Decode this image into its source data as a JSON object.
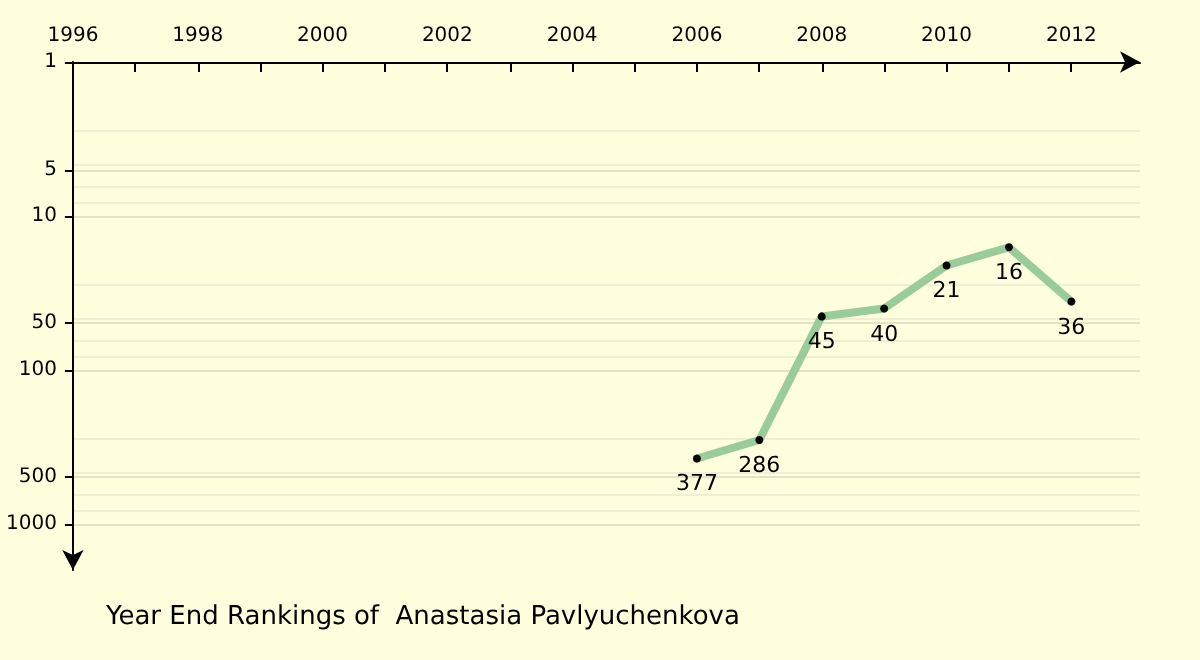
{
  "chart_data": {
    "type": "line",
    "title": "Year End Rankings of  Anastasia Pavlyuchenkova",
    "x": [
      2006,
      2007,
      2008,
      2009,
      2010,
      2011,
      2012
    ],
    "series": [
      {
        "color": "#99cc99",
        "values": [
          377,
          286,
          45,
          40,
          21,
          16,
          36
        ]
      }
    ],
    "xlim": [
      1996,
      2013.1
    ],
    "xticks": [
      1996,
      {
        "value": 1997,
        "label": null
      },
      1998,
      {
        "value": 1999,
        "label": null
      },
      2000,
      {
        "value": 2001,
        "label": null
      },
      2002,
      {
        "value": 2003,
        "label": null
      },
      2004,
      {
        "value": 2005,
        "label": null
      },
      2006,
      {
        "value": 2007,
        "label": null
      },
      2008,
      {
        "value": 2009,
        "label": null
      },
      2010,
      {
        "value": 2011,
        "label": null
      },
      2012
    ],
    "ylim": [
      2000,
      1
    ],
    "yticks": [
      1,
      5,
      10,
      50,
      100,
      500,
      1000
    ],
    "log": "y",
    "grid": "y",
    "marker": "circle",
    "line_style": "solid",
    "data_labels": true
  }
}
